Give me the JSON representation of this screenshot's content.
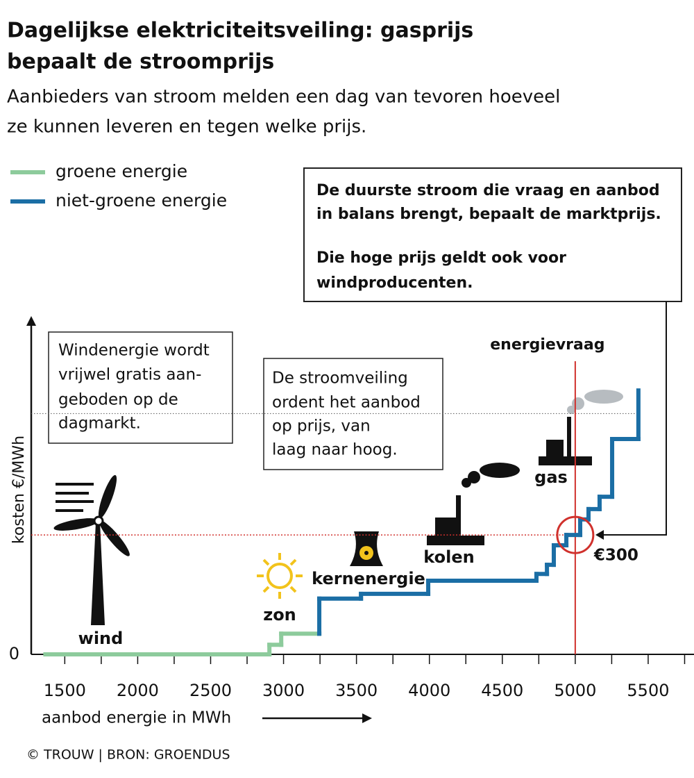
{
  "chart_data": {
    "type": "step",
    "title": [
      "Dagelijkse elektriciteitsveiling: gasprijs",
      "bepaalt de stroomprijs"
    ],
    "subtitle": [
      "Aanbieders van stroom melden een dag van tevoren hoeveel",
      "ze kunnen leveren en tegen welke prijs."
    ],
    "xlabel": "aanbod energie in MWh",
    "ylabel": "kosten  €/MWh",
    "xlim": [
      1270,
      5800
    ],
    "ylim": [
      0,
      850
    ],
    "xticks": [
      1500,
      2000,
      2500,
      3000,
      3500,
      4000,
      4500,
      5000,
      5500
    ],
    "xminorticks": [
      1750,
      2250,
      2750,
      3250,
      3750,
      4250,
      4750,
      5250,
      5750
    ],
    "yticks": [
      0
    ],
    "series": [
      {
        "name": "groene energie",
        "color": "#8dcb9c",
        "x": [
          1367,
          2903,
          2984,
          3245
        ],
        "values": [
          0,
          24,
          52,
          52
        ]
      },
      {
        "name": "niet-groene energie",
        "color": "#1b6ea5",
        "x": [
          3245,
          3245,
          3531,
          3992,
          4734,
          4806,
          4853,
          4939,
          5034,
          5091,
          5167,
          5253,
          5433
        ],
        "values": [
          52,
          140,
          152,
          185,
          202,
          225,
          274,
          300,
          339,
          365,
          396,
          541,
          663
        ]
      }
    ],
    "demand": {
      "x": 5000,
      "label": "energievraag"
    },
    "price_marker": {
      "value": 300,
      "label": "€300"
    },
    "gas_level": 605,
    "source_labels": [
      "wind",
      "zon",
      "kernenergie",
      "kolen",
      "gas"
    ],
    "box_main": [
      "De duurste stroom die vraag en aanbod",
      "in balans brengt, bepaalt de marktprijs.",
      "Die hoge prijs geldt ook voor",
      "windproducenten."
    ],
    "box_wind": [
      "Windenergie wordt",
      "vrijwel gratis aan-",
      "geboden op de",
      "dagmarkt."
    ],
    "box_auction": [
      "De stroomveiling",
      "ordent het aanbod",
      "op prijs, van",
      "laag naar hoog."
    ],
    "credit": "© TROUW | BRON: GROENDUS"
  }
}
